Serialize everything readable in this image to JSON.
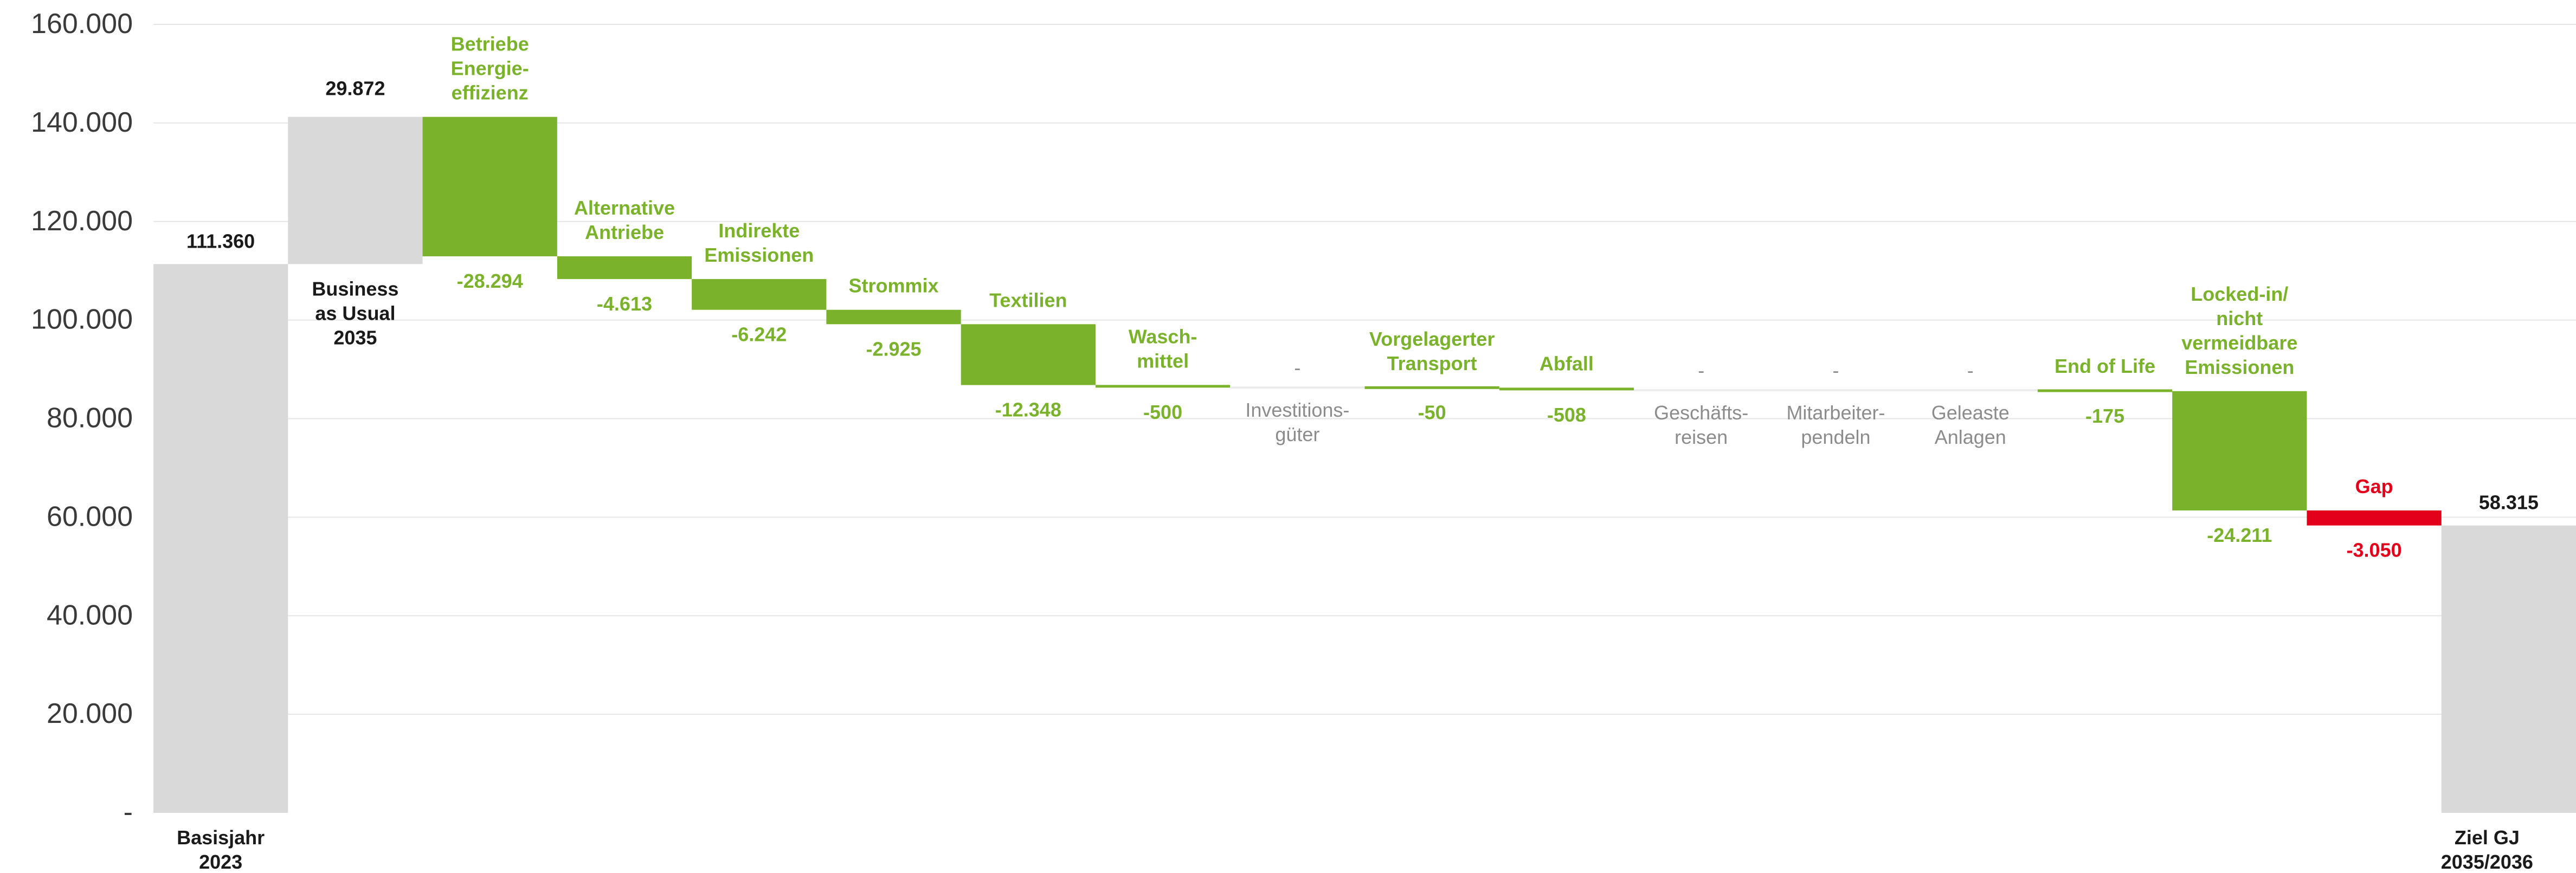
{
  "chart_data": {
    "type": "waterfall",
    "ylim": [
      0,
      160000
    ],
    "y_ticks": [
      "-",
      "20.000",
      "40.000",
      "60.000",
      "80.000",
      "100.000",
      "120.000",
      "140.000",
      "160.000"
    ],
    "grid": true,
    "colors": {
      "base": "#d9d9d9",
      "reduction": "#7ab32b",
      "gap": "#e2001a",
      "label_dark": "#1a1a1a",
      "label_gray": "#8c8c8c",
      "grid": "#e6e6e6",
      "tick": "#3a3a3a"
    },
    "bars": [
      {
        "kind": "base",
        "label": "Basisjahr\n2023",
        "value": 111360,
        "value_label": "111.360"
      },
      {
        "kind": "increase",
        "label": "Business\nas Usual\n2035",
        "value": 29872,
        "value_label": "29.872"
      },
      {
        "kind": "reduction",
        "label": "Betriebe\nEnergie-\neffizienz",
        "value": -28294,
        "value_label": "-28.294"
      },
      {
        "kind": "reduction",
        "label": "Alternative\nAntriebe",
        "value": -4613,
        "value_label": "-4.613"
      },
      {
        "kind": "reduction",
        "label": "Indirekte\nEmissionen",
        "value": -6242,
        "value_label": "-6.242"
      },
      {
        "kind": "reduction",
        "label": "Strommix",
        "value": -2925,
        "value_label": "-2.925"
      },
      {
        "kind": "reduction",
        "label": "Textilien",
        "value": -12348,
        "value_label": "-12.348"
      },
      {
        "kind": "reduction",
        "label": "Wasch-\nmittel",
        "value": -500,
        "value_label": "-500"
      },
      {
        "kind": "zero",
        "label": "Investitions-\ngüter",
        "value": 0,
        "value_label": "-"
      },
      {
        "kind": "reduction",
        "label": "Vorgelagerter\nTransport",
        "value": -50,
        "value_label": "-50"
      },
      {
        "kind": "reduction",
        "label": "Abfall",
        "value": -508,
        "value_label": "-508"
      },
      {
        "kind": "zero",
        "label": "Geschäfts-\nreisen",
        "value": 0,
        "value_label": "-"
      },
      {
        "kind": "zero",
        "label": "Mitarbeiter-\npendeln",
        "value": 0,
        "value_label": "-"
      },
      {
        "kind": "zero",
        "label": "Geleaste\nAnlagen",
        "value": 0,
        "value_label": "-"
      },
      {
        "kind": "reduction",
        "label": "End of Life",
        "value": -175,
        "value_label": "-175"
      },
      {
        "kind": "reduction",
        "label": "Locked-in/\nnicht\nvermeidbare\nEmissionen",
        "value": -24211,
        "value_label": "-24.211"
      },
      {
        "kind": "gap",
        "label": "Gap",
        "value": -3050,
        "value_label": "-3.050"
      },
      {
        "kind": "base",
        "label": "Ziel GJ\n2035/2036",
        "value": 58315,
        "value_label": "58.315"
      }
    ]
  }
}
